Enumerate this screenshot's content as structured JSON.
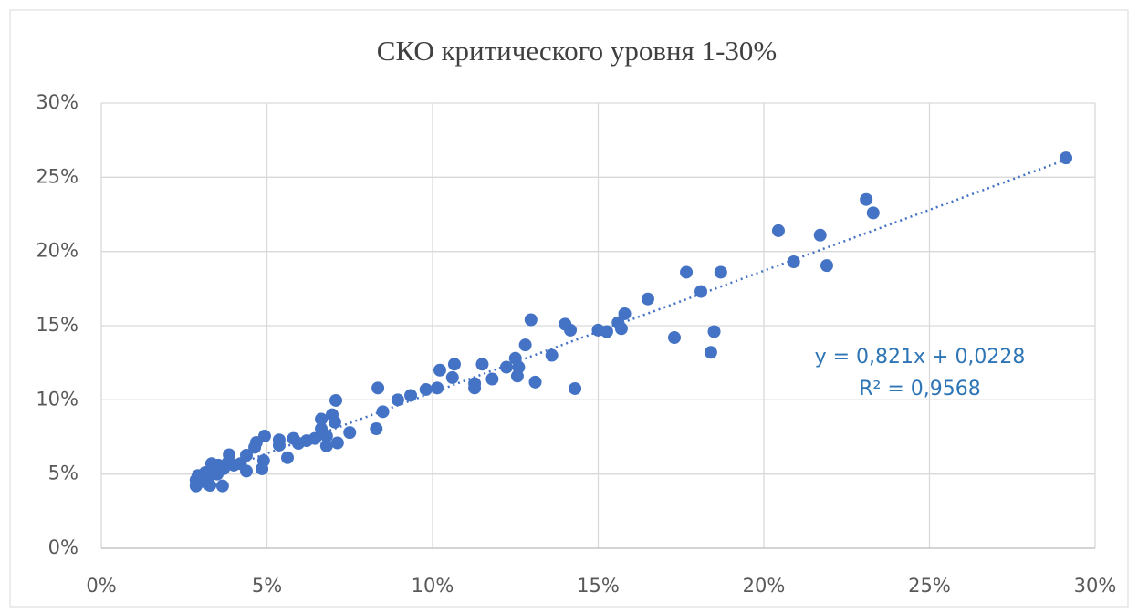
{
  "chart_data": {
    "type": "scatter",
    "title": "СКО критического уровня 1-30%",
    "x": [
      0.2912,
      0.2309,
      0.233,
      0.2044,
      0.209,
      0.217,
      0.219,
      0.1766,
      0.187,
      0.181,
      0.165,
      0.158,
      0.156,
      0.157,
      0.15,
      0.1526,
      0.173,
      0.185,
      0.184,
      0.1297,
      0.14,
      0.1416,
      0.136,
      0.128,
      0.125,
      0.126,
      0.1256,
      0.1223,
      0.131,
      0.143,
      0.115,
      0.1127,
      0.1127,
      0.118,
      0.1066,
      0.106,
      0.1022,
      0.1014,
      0.098,
      0.0934,
      0.0895,
      0.0835,
      0.085,
      0.083,
      0.075,
      0.0708,
      0.0697,
      0.0705,
      0.0664,
      0.0664,
      0.068,
      0.068,
      0.0713,
      0.0645,
      0.062,
      0.0595,
      0.058,
      0.0562,
      0.0537,
      0.0537,
      0.049,
      0.0485,
      0.0493,
      0.0468,
      0.0463,
      0.0438,
      0.0438,
      0.042,
      0.04,
      0.0383,
      0.0386,
      0.0369,
      0.0366,
      0.0353,
      0.035,
      0.0333,
      0.033,
      0.0328,
      0.0314,
      0.0306,
      0.0292,
      0.0286,
      0.0286
    ],
    "series": [
      {
        "color": "#4472c4",
        "values": [
          0.263,
          0.235,
          0.226,
          0.214,
          0.193,
          0.211,
          0.1905,
          0.186,
          0.186,
          0.173,
          0.168,
          0.158,
          0.152,
          0.148,
          0.147,
          0.146,
          0.142,
          0.146,
          0.132,
          0.154,
          0.151,
          0.147,
          0.13,
          0.137,
          0.128,
          0.122,
          0.116,
          0.122,
          0.112,
          0.1076,
          0.124,
          0.111,
          0.108,
          0.114,
          0.124,
          0.115,
          0.12,
          0.108,
          0.107,
          0.103,
          0.1,
          0.108,
          0.092,
          0.0805,
          0.078,
          0.0996,
          0.09,
          0.085,
          0.087,
          0.0805,
          0.0756,
          0.069,
          0.071,
          0.074,
          0.0725,
          0.0707,
          0.074,
          0.061,
          0.073,
          0.0695,
          0.059,
          0.0535,
          0.0756,
          0.0713,
          0.068,
          0.0627,
          0.052,
          0.057,
          0.056,
          0.058,
          0.063,
          0.0535,
          0.042,
          0.056,
          0.05,
          0.057,
          0.05,
          0.0424,
          0.051,
          0.045,
          0.049,
          0.042,
          0.046
        ]
      }
    ],
    "trendline": {
      "slope": 0.821,
      "intercept": 0.0228,
      "equation": "y = 0,821x + 0,0228",
      "r2": "R² = 0,9568"
    },
    "xlim": [
      0,
      0.3
    ],
    "ylim": [
      0,
      0.3
    ],
    "xticks": [
      {
        "value": 0,
        "label": "0%"
      },
      {
        "value": 0.05,
        "label": "5%"
      },
      {
        "value": 0.1,
        "label": "10%"
      },
      {
        "value": 0.15,
        "label": "15%"
      },
      {
        "value": 0.2,
        "label": "20%"
      },
      {
        "value": 0.25,
        "label": "25%"
      },
      {
        "value": 0.3,
        "label": "30%"
      }
    ],
    "yticks": [
      {
        "value": 0,
        "label": "0%"
      },
      {
        "value": 0.05,
        "label": "5%"
      },
      {
        "value": 0.1,
        "label": "10%"
      },
      {
        "value": 0.15,
        "label": "15%"
      },
      {
        "value": 0.2,
        "label": "20%"
      },
      {
        "value": 0.25,
        "label": "25%"
      },
      {
        "value": 0.3,
        "label": "30%"
      }
    ],
    "grid": true
  }
}
